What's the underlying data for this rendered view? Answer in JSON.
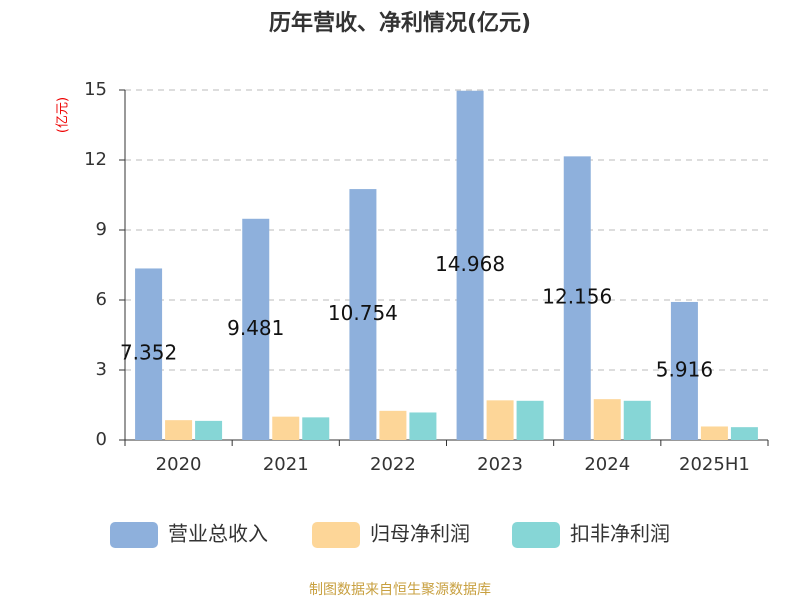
{
  "chart_data": {
    "type": "bar",
    "title": "历年营收、净利情况(亿元)",
    "y_label": "(亿元)",
    "categories": [
      "2020",
      "2021",
      "2022",
      "2023",
      "2024",
      "2025H1"
    ],
    "series": [
      {
        "name": "营业总收入",
        "color": "#8eb0dc",
        "values": [
          7.352,
          9.481,
          10.754,
          14.968,
          12.156,
          5.916
        ],
        "show_labels": true
      },
      {
        "name": "归母净利润",
        "color": "#fdd698",
        "values": [
          0.85,
          1.0,
          1.25,
          1.7,
          1.75,
          0.58
        ]
      },
      {
        "name": "扣非净利润",
        "color": "#86d6d6",
        "values": [
          0.82,
          0.97,
          1.18,
          1.68,
          1.68,
          0.55
        ]
      }
    ],
    "ylim": [
      0,
      15
    ],
    "yticks": [
      0,
      3,
      6,
      9,
      12,
      15
    ],
    "grid": true,
    "source": "制图数据来自恒生聚源数据库"
  }
}
